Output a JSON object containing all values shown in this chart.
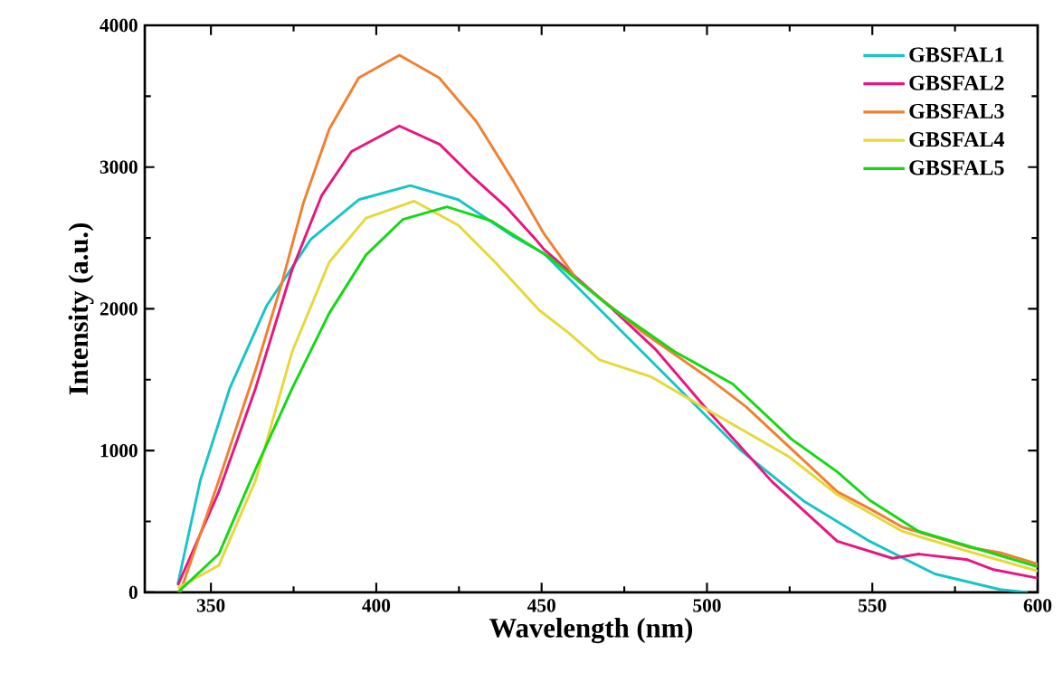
{
  "chart_data": {
    "type": "line",
    "xlabel": "Wavelength (nm)",
    "ylabel": "Intensity (a.u.)",
    "xlim": [
      330,
      600
    ],
    "ylim": [
      0,
      4000
    ],
    "xticks": [
      350,
      400,
      450,
      500,
      550,
      600
    ],
    "yticks": [
      0,
      1000,
      2000,
      3000,
      4000
    ],
    "legend": "top right",
    "marker": "none",
    "line_style": "solid",
    "series": [
      {
        "name": "GBSFAL1",
        "color": "#17c4c8",
        "x": [
          340,
          346.8,
          355.7,
          366.8,
          380.2,
          394.7,
          410.3,
          424.8,
          441.5,
          450.7,
          470.4,
          490.1,
          509.8,
          529.5,
          549.2,
          568.9,
          588.6,
          597
        ],
        "values": [
          60,
          790,
          1440,
          2020,
          2490,
          2770,
          2870,
          2770,
          2510,
          2390,
          1930,
          1470,
          1010,
          640,
          360,
          130,
          20,
          0
        ]
      },
      {
        "name": "GBSFAL2",
        "color": "#e8157f",
        "x": [
          340,
          352.4,
          363.5,
          374.6,
          383.5,
          392.5,
          407,
          419.2,
          429.2,
          439.2,
          448.2,
          450.7,
          470.4,
          484.2,
          500,
          519.7,
          539.4,
          556.1,
          564,
          578.8,
          586.7,
          600
        ],
        "values": [
          50,
          710,
          1440,
          2280,
          2800,
          3110,
          3290,
          3160,
          2930,
          2720,
          2490,
          2420,
          2020,
          1720,
          1290,
          780,
          360,
          240,
          270,
          230,
          160,
          100
        ]
      },
      {
        "name": "GBSFAL3",
        "color": "#f08030",
        "x": [
          340.7,
          352.4,
          363.5,
          371.3,
          378,
          385.8,
          394.7,
          407,
          419,
          430.3,
          441.5,
          450.7,
          460.6,
          480.3,
          500,
          511.8,
          525.6,
          539.4,
          549.2,
          559.1,
          578.8,
          588.6,
          600
        ],
        "values": [
          0,
          790,
          1570,
          2170,
          2750,
          3270,
          3630,
          3790,
          3630,
          3320,
          2900,
          2530,
          2210,
          1840,
          1520,
          1310,
          1010,
          710,
          590,
          460,
          320,
          280,
          200
        ]
      },
      {
        "name": "GBSFAL4",
        "color": "#e6d83a",
        "x": [
          340,
          352.4,
          363.5,
          374.6,
          385.8,
          396.9,
          411.4,
          424.8,
          435.9,
          449.3,
          458.2,
          467.5,
          483.2,
          500,
          524.6,
          539.4,
          559.1,
          578.8,
          600
        ],
        "values": [
          30,
          190,
          790,
          1700,
          2330,
          2640,
          2760,
          2590,
          2330,
          1990,
          1830,
          1640,
          1520,
          1290,
          960,
          690,
          430,
          290,
          150
        ]
      },
      {
        "name": "GBSFAL5",
        "color": "#14d814",
        "x": [
          340,
          352.4,
          363.5,
          374.6,
          385.8,
          396.9,
          408,
          421.4,
          434.8,
          452.6,
          470.4,
          490.1,
          507.8,
          525.6,
          539.4,
          549.2,
          564,
          585.7,
          600
        ],
        "values": [
          0,
          270,
          870,
          1440,
          1970,
          2380,
          2630,
          2720,
          2620,
          2360,
          2020,
          1700,
          1470,
          1080,
          850,
          650,
          430,
          280,
          180
        ]
      }
    ]
  }
}
